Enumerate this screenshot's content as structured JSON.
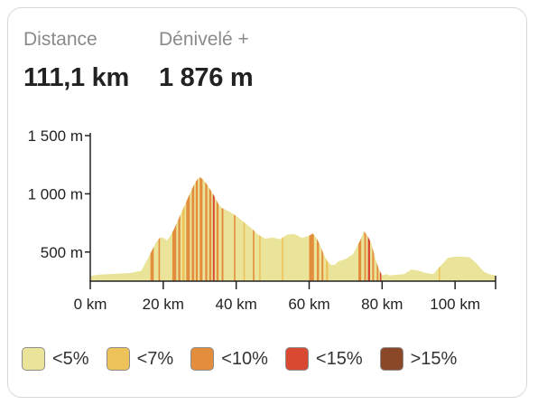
{
  "stats": {
    "distance": {
      "label": "Distance",
      "value": "111,1 km"
    },
    "elevation_gain": {
      "label": "Dénivelé +",
      "value": "1 876 m"
    }
  },
  "chart_data": {
    "type": "area",
    "title": "",
    "xlabel": "",
    "ylabel": "",
    "xlim": [
      0,
      111.1
    ],
    "ylim": [
      250,
      1500
    ],
    "x_ticks": [
      {
        "value": 0,
        "label": "0 km"
      },
      {
        "value": 20,
        "label": "20 km"
      },
      {
        "value": 40,
        "label": "40 km"
      },
      {
        "value": 60,
        "label": "60 km"
      },
      {
        "value": 80,
        "label": "80 km"
      },
      {
        "value": 100,
        "label": "100 km"
      }
    ],
    "y_ticks": [
      {
        "value": 500,
        "label": "500 m"
      },
      {
        "value": 1000,
        "label": "1 000 m"
      },
      {
        "value": 1500,
        "label": "1 500 m"
      }
    ],
    "series": [
      {
        "x": [
          0,
          2,
          5,
          8,
          11,
          14,
          15,
          16,
          17,
          18,
          19,
          20,
          21,
          22,
          23,
          24,
          25,
          26,
          27,
          28,
          29,
          30,
          31,
          32,
          33,
          34,
          35,
          36,
          38,
          40,
          42,
          44,
          46,
          48,
          50,
          52,
          54,
          56,
          58,
          60,
          61,
          62,
          63,
          64,
          65,
          66,
          67,
          68,
          70,
          72,
          74,
          75,
          76,
          77,
          78,
          79,
          80,
          81,
          82,
          84,
          86,
          88,
          90,
          92,
          94,
          96,
          98,
          100,
          102,
          104,
          106,
          107,
          108,
          109,
          110,
          111.1
        ],
        "y": [
          295,
          305,
          310,
          315,
          320,
          340,
          400,
          460,
          520,
          580,
          620,
          625,
          600,
          640,
          700,
          770,
          840,
          910,
          980,
          1050,
          1110,
          1145,
          1120,
          1080,
          1030,
          980,
          920,
          880,
          850,
          810,
          760,
          710,
          650,
          615,
          625,
          610,
          650,
          655,
          620,
          640,
          660,
          620,
          560,
          480,
          420,
          390,
          390,
          420,
          440,
          480,
          600,
          680,
          640,
          580,
          460,
          360,
          300,
          310,
          300,
          305,
          310,
          350,
          340,
          320,
          310,
          380,
          450,
          460,
          460,
          455,
          400,
          360,
          330,
          315,
          305,
          300
        ]
      }
    ],
    "gradient_bands": [
      {
        "range": [
          16.5,
          17.4
        ],
        "class": "lt10"
      },
      {
        "range": [
          18.7,
          19.1
        ],
        "class": "lt10"
      },
      {
        "range": [
          22.5,
          23.6
        ],
        "class": "lt10"
      },
      {
        "range": [
          24.1,
          24.7
        ],
        "class": "lt10"
      },
      {
        "range": [
          25.2,
          25.9
        ],
        "class": "lt7"
      },
      {
        "range": [
          26.3,
          27.3
        ],
        "class": "lt10"
      },
      {
        "range": [
          27.8,
          28.5
        ],
        "class": "lt10"
      },
      {
        "range": [
          28.9,
          29.5
        ],
        "class": "lt10"
      },
      {
        "range": [
          30.0,
          30.8
        ],
        "class": "lt10"
      },
      {
        "range": [
          31.5,
          32.1
        ],
        "class": "lt10"
      },
      {
        "range": [
          32.6,
          33.2
        ],
        "class": "lt10"
      },
      {
        "range": [
          33.6,
          34.1
        ],
        "class": "lt15"
      },
      {
        "range": [
          34.6,
          35.2
        ],
        "class": "lt10"
      },
      {
        "range": [
          36.0,
          36.5
        ],
        "class": "lt10"
      },
      {
        "range": [
          39.4,
          39.8
        ],
        "class": "lt10"
      },
      {
        "range": [
          42.0,
          42.4
        ],
        "class": "lt7"
      },
      {
        "range": [
          44.6,
          45.0
        ],
        "class": "lt10"
      },
      {
        "range": [
          46.3,
          46.7
        ],
        "class": "lt7"
      },
      {
        "range": [
          52.5,
          52.9
        ],
        "class": "lt7"
      },
      {
        "range": [
          60.0,
          61.3
        ],
        "class": "lt10"
      },
      {
        "range": [
          62.1,
          62.7
        ],
        "class": "lt10"
      },
      {
        "range": [
          63.4,
          63.9
        ],
        "class": "lt10"
      },
      {
        "range": [
          64.6,
          65.2
        ],
        "class": "lt7"
      },
      {
        "range": [
          73.5,
          74.3
        ],
        "class": "lt10"
      },
      {
        "range": [
          75.1,
          75.6
        ],
        "class": "lt10"
      },
      {
        "range": [
          76.1,
          76.7
        ],
        "class": "lt15"
      },
      {
        "range": [
          77.3,
          77.8
        ],
        "class": "lt10"
      },
      {
        "range": [
          78.5,
          79.0
        ],
        "class": "lt10"
      },
      {
        "range": [
          79.4,
          79.8
        ],
        "class": "lt15"
      },
      {
        "range": [
          95.5,
          95.9
        ],
        "class": "lt7"
      }
    ],
    "legend": [
      {
        "class": "lt5",
        "label": "<5%",
        "color": "#eae49b"
      },
      {
        "class": "lt7",
        "label": "<7%",
        "color": "#eec25a"
      },
      {
        "class": "lt10",
        "label": "<10%",
        "color": "#e38e3c"
      },
      {
        "class": "lt15",
        "label": "<15%",
        "color": "#d94830"
      },
      {
        "class": "gt15",
        "label": ">15%",
        "color": "#8a4828"
      }
    ],
    "grid": false
  }
}
